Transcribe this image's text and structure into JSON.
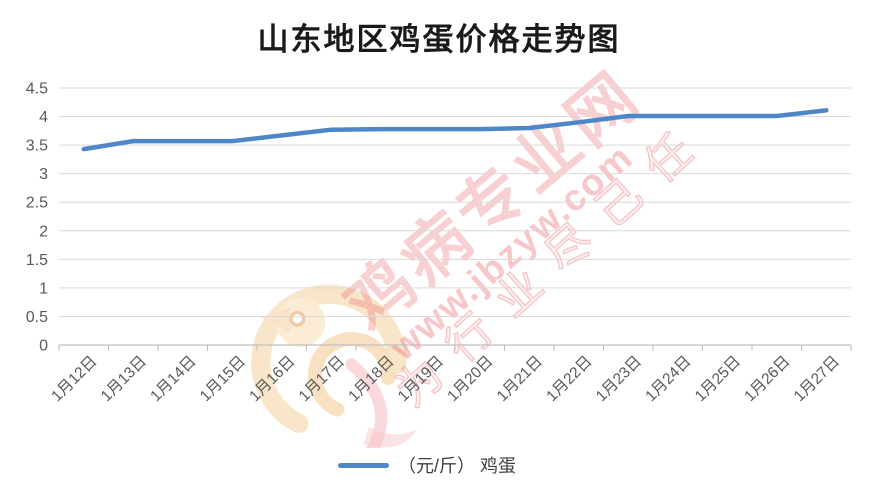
{
  "chart_data": {
    "type": "line",
    "title": "山东地区鸡蛋价格走势图",
    "categories": [
      "1月12日",
      "1月13日",
      "1月14日",
      "1月15日",
      "1月16日",
      "1月17日",
      "1月18日",
      "1月19日",
      "1月20日",
      "1月21日",
      "1月22日",
      "1月23日",
      "1月24日",
      "1月25日",
      "1月26日",
      "1月27日"
    ],
    "series": [
      {
        "name": "（元/斤） 鸡蛋",
        "color": "#4e87c7",
        "values": [
          3.43,
          3.57,
          3.57,
          3.57,
          3.67,
          3.77,
          3.78,
          3.78,
          3.78,
          3.8,
          3.9,
          4.01,
          4.01,
          4.01,
          4.01,
          4.11
        ]
      }
    ],
    "xlabel": "",
    "ylabel": "",
    "ylim": [
      0,
      4.5
    ],
    "ytick_labels": [
      "0",
      "0.5",
      "1",
      "1.5",
      "2",
      "2.5",
      "3",
      "3.5",
      "4",
      "4.5"
    ],
    "grid": true,
    "legend_position": "bottom",
    "colors": {
      "gridline": "#d9d9d9",
      "axis": "#bfbfbf",
      "tick_label": "#595959",
      "title": "#1a1a1a"
    }
  },
  "watermark": {
    "site_name": "鸡病专业网",
    "url": "www.jbzyw.com",
    "slogan": "为行业尽己任",
    "color": "#e8696e",
    "logo": "rooster-swirl-logo"
  }
}
